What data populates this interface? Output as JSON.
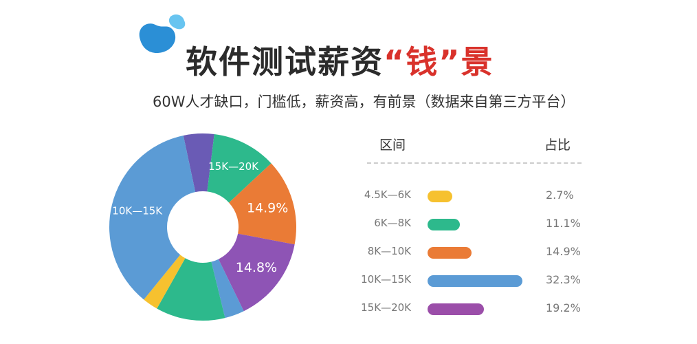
{
  "header": {
    "title_main": "软件测试薪资",
    "title_highlight": "“钱”景",
    "subtitle": "60W人才缺口，门槛低，薪资高，有前景（数据来自第三方平台）"
  },
  "table": {
    "col_range": "区间",
    "col_share": "占比"
  },
  "chart_data": {
    "type": "pie",
    "donut": true,
    "categories": [
      "4.5K—6K",
      "6K—8K",
      "8K—10K",
      "10K—15K",
      "15K—20K"
    ],
    "values": [
      2.7,
      11.1,
      14.9,
      32.3,
      19.2
    ],
    "value_labels": [
      "2.7%",
      "11.1%",
      "14.9%",
      "32.3%",
      "19.2%"
    ],
    "colors": [
      "#f6c12f",
      "#2db98c",
      "#ea7b36",
      "#5b9bd5",
      "#9b4ea9"
    ],
    "donut_segments": [
      {
        "color": "#6a5bb5",
        "value": 5.3,
        "label": ""
      },
      {
        "color": "#2db98c",
        "value": 11.1,
        "label": "15K—20K"
      },
      {
        "color": "#ea7b36",
        "value": 14.9,
        "label": "14.9%"
      },
      {
        "color": "#8e54b5",
        "value": 14.8,
        "label": "14.8%"
      },
      {
        "color": "#5b9bd5",
        "value": 3.4,
        "label": ""
      },
      {
        "color": "#2db98c",
        "value": 12.0,
        "label": ""
      },
      {
        "color": "#f6c12f",
        "value": 2.7,
        "label": ""
      },
      {
        "color": "#5b9bd5",
        "value": 35.8,
        "label": "10K—15K"
      }
    ],
    "start_angle_deg": -12
  }
}
